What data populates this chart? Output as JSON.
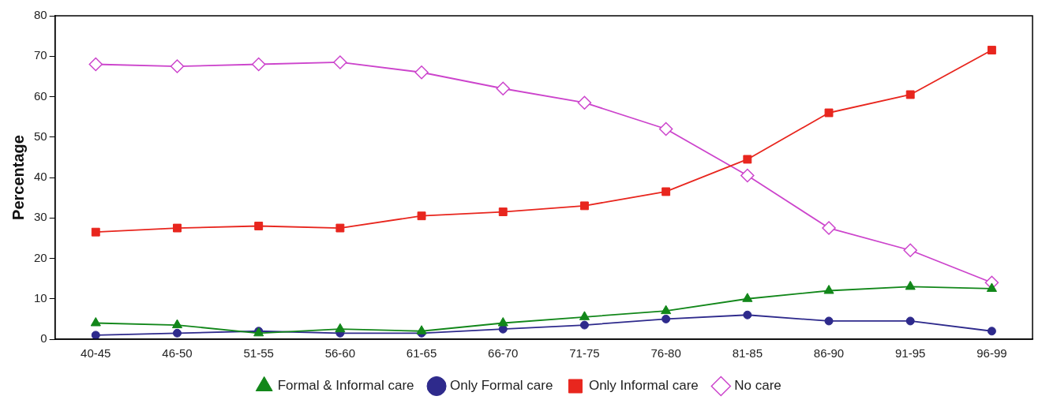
{
  "chart_data": {
    "type": "line",
    "ylabel": "Percentage",
    "categories": [
      "40-45",
      "46-50",
      "51-55",
      "56-60",
      "61-65",
      "66-70",
      "71-75",
      "76-80",
      "81-85",
      "86-90",
      "91-95",
      "96-99"
    ],
    "series": [
      {
        "name": "No care",
        "color": "#cc44cc",
        "marker": "diamond",
        "values": [
          68,
          67.5,
          68,
          68.5,
          66,
          62,
          58.5,
          52,
          40.5,
          27.5,
          22,
          14
        ]
      },
      {
        "name": "Only Informal care",
        "color": "#e8261e",
        "marker": "square",
        "values": [
          26.5,
          27.5,
          28,
          27.5,
          30.5,
          31.5,
          33,
          36.5,
          44.5,
          56,
          60.5,
          71.5
        ]
      },
      {
        "name": "Only Formal care",
        "color": "#2e2a8c",
        "marker": "circle",
        "values": [
          1,
          1.5,
          2,
          1.5,
          1.5,
          2.5,
          3.5,
          5,
          6,
          4.5,
          4.5,
          2
        ]
      },
      {
        "name": "Formal & Informal care",
        "color": "#12871a",
        "marker": "triangle",
        "values": [
          4,
          3.5,
          1.5,
          2.5,
          2,
          4,
          5.5,
          7,
          10,
          12,
          13,
          12.5
        ]
      }
    ],
    "ylim": [
      0,
      80
    ],
    "yticks": [
      0,
      10,
      20,
      30,
      40,
      50,
      60,
      70,
      80
    ],
    "grid": false,
    "legend": "bottom",
    "line_style": "solid"
  }
}
